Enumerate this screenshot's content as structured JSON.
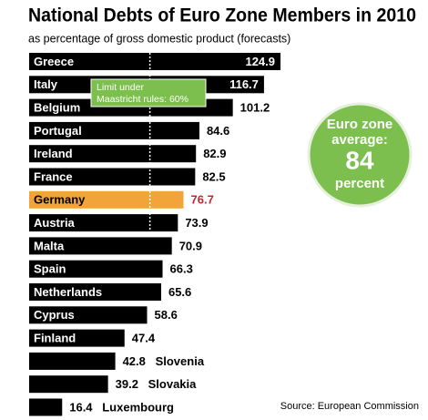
{
  "chart_data": {
    "type": "bar",
    "orientation": "horizontal",
    "title": "National Debts of Euro Zone Members in 2010",
    "subtitle": "as percentage of gross domestic product (forecasts)",
    "categories": [
      "Greece",
      "Italy",
      "Belgium",
      "Portugal",
      "Ireland",
      "France",
      "Germany",
      "Austria",
      "Malta",
      "Spain",
      "Netherlands",
      "Cyprus",
      "Finland",
      "Slovenia",
      "Slovakia",
      "Luxembourg"
    ],
    "values": [
      124.9,
      116.7,
      101.2,
      84.6,
      82.9,
      82.5,
      76.7,
      73.9,
      70.9,
      66.3,
      65.6,
      58.6,
      47.4,
      42.8,
      39.2,
      16.4
    ],
    "colors": [
      "#000000",
      "#000000",
      "#000000",
      "#000000",
      "#000000",
      "#000000",
      "#f2a33a",
      "#000000",
      "#000000",
      "#000000",
      "#000000",
      "#000000",
      "#000000",
      "#000000",
      "#000000",
      "#000000"
    ],
    "highlight_label_color": "#c0282d",
    "limit": {
      "value": 60,
      "label": "Limit under Maastricht rules: 60%"
    },
    "average": {
      "label_top": "Euro zone average:",
      "value": 84,
      "label_bottom": "percent",
      "color": "#7cbf4e"
    },
    "source": "Source: European Commission"
  }
}
